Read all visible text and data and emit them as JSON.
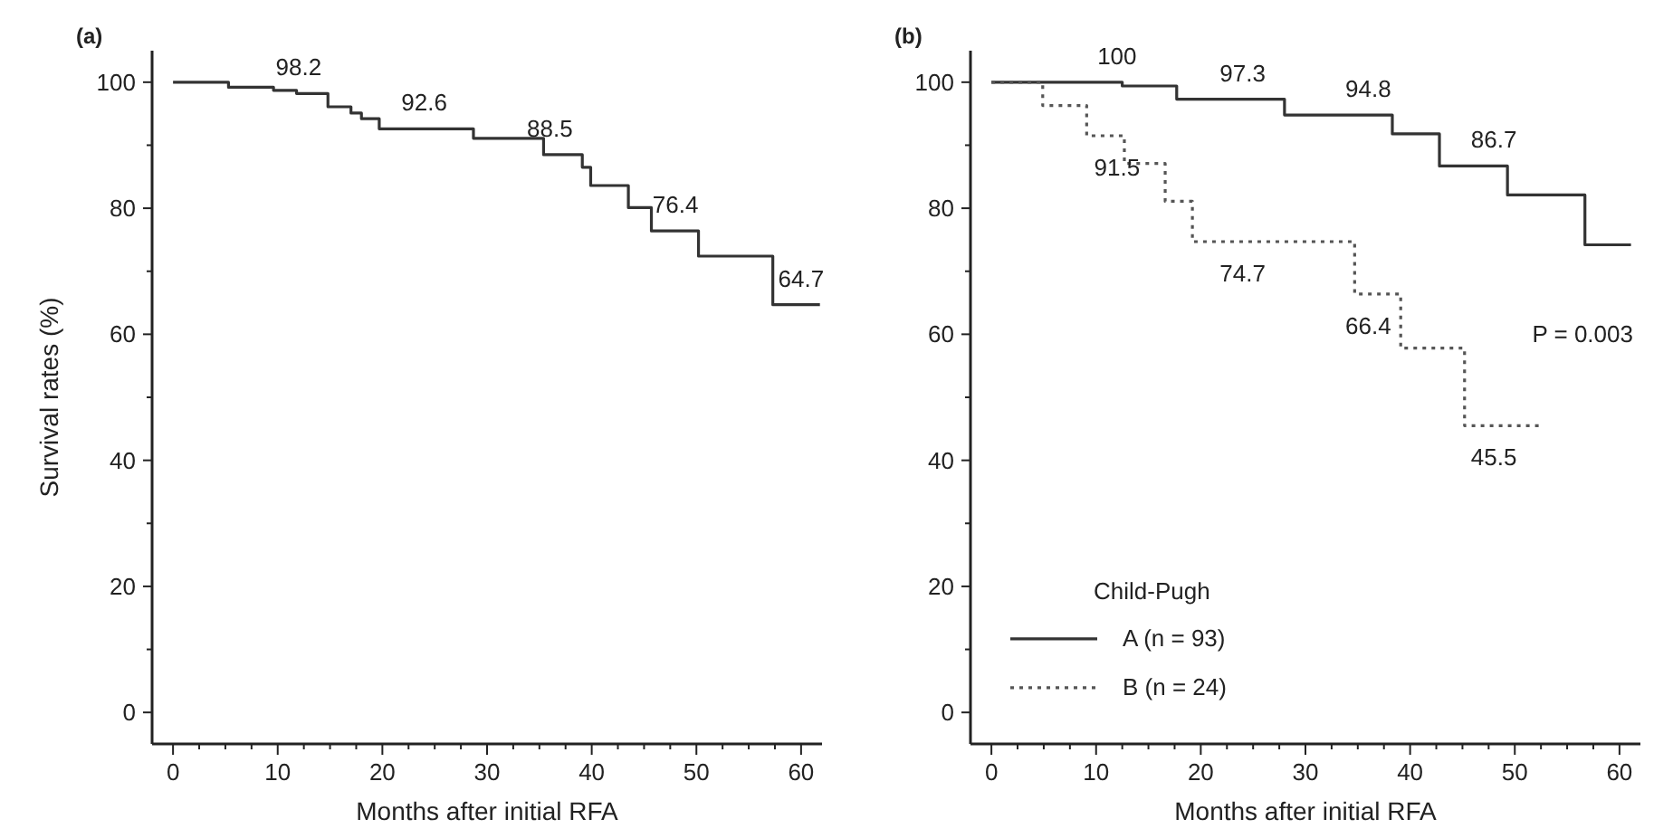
{
  "chart_data": [
    {
      "type": "step",
      "title": "(a)",
      "xlabel": "Months after initial RFA",
      "ylabel": "Survival rates (%)",
      "xlim": [
        -2,
        62
      ],
      "ylim": [
        -5,
        105
      ],
      "xticks": [
        0,
        {
          "value": 2.5,
          "label": null
        },
        {
          "value": 5,
          "label": null
        },
        {
          "value": 7.5,
          "label": null
        },
        10,
        {
          "value": 12.5,
          "label": null
        },
        {
          "value": 15,
          "label": null
        },
        {
          "value": 17.5,
          "label": null
        },
        20,
        {
          "value": 22.5,
          "label": null
        },
        {
          "value": 25,
          "label": null
        },
        {
          "value": 27.5,
          "label": null
        },
        30,
        {
          "value": 32.5,
          "label": null
        },
        {
          "value": 35,
          "label": null
        },
        {
          "value": 37.5,
          "label": null
        },
        40,
        {
          "value": 42.5,
          "label": null
        },
        {
          "value": 45,
          "label": null
        },
        {
          "value": 47.5,
          "label": null
        },
        50,
        {
          "value": 52.5,
          "label": null
        },
        {
          "value": 55,
          "label": null
        },
        {
          "value": 57.5,
          "label": null
        },
        60
      ],
      "yticks": [
        0,
        {
          "value": 10,
          "label": null
        },
        20,
        {
          "value": 30,
          "label": null
        },
        40,
        {
          "value": 50,
          "label": null
        },
        60,
        {
          "value": 70,
          "label": null
        },
        80,
        {
          "value": 90,
          "label": null
        },
        100
      ],
      "grid": false,
      "legend": false,
      "series": [
        {
          "color": "#333333",
          "line_style": "solid",
          "x": [
            0,
            5.3,
            9.6,
            11.8,
            14.8,
            17.0,
            18.0,
            19.7,
            28.7,
            35.4,
            39.1,
            39.9,
            43.5,
            45.7,
            50.2,
            57.3,
            61.8
          ],
          "values": [
            100,
            99.2,
            98.7,
            98.2,
            96.1,
            95.1,
            94.2,
            92.6,
            91.1,
            88.5,
            86.5,
            83.6,
            80.1,
            76.4,
            72.4,
            64.7,
            64.7
          ]
        }
      ],
      "annotations": [
        {
          "text": "98.2",
          "x": 12,
          "y": 98.2
        },
        {
          "text": "92.6",
          "x": 24,
          "y": 92.6
        },
        {
          "text": "88.5",
          "x": 36,
          "y": 88.5
        },
        {
          "text": "76.4",
          "x": 48,
          "y": 76.4
        },
        {
          "text": "64.7",
          "x": 60,
          "y": 64.7
        }
      ]
    },
    {
      "type": "step",
      "title": "(b)",
      "xlabel": "Months after initial RFA",
      "xlim": [
        -2,
        62
      ],
      "ylim": [
        -5,
        105
      ],
      "xticks": [
        0,
        {
          "value": 2.5,
          "label": null
        },
        {
          "value": 5,
          "label": null
        },
        {
          "value": 7.5,
          "label": null
        },
        10,
        {
          "value": 12.5,
          "label": null
        },
        {
          "value": 15,
          "label": null
        },
        {
          "value": 17.5,
          "label": null
        },
        20,
        {
          "value": 22.5,
          "label": null
        },
        {
          "value": 25,
          "label": null
        },
        {
          "value": 27.5,
          "label": null
        },
        30,
        {
          "value": 32.5,
          "label": null
        },
        {
          "value": 35,
          "label": null
        },
        {
          "value": 37.5,
          "label": null
        },
        40,
        {
          "value": 42.5,
          "label": null
        },
        {
          "value": 45,
          "label": null
        },
        {
          "value": 47.5,
          "label": null
        },
        50,
        {
          "value": 52.5,
          "label": null
        },
        {
          "value": 55,
          "label": null
        },
        {
          "value": 57.5,
          "label": null
        },
        60
      ],
      "yticks": [
        0,
        {
          "value": 10,
          "label": null
        },
        20,
        {
          "value": 30,
          "label": null
        },
        40,
        {
          "value": 50,
          "label": null
        },
        60,
        {
          "value": 70,
          "label": null
        },
        80,
        {
          "value": 90,
          "label": null
        },
        100
      ],
      "grid": false,
      "legend": "bottom left",
      "legend_title": "Child-Pugh",
      "series": [
        {
          "name": "A (n = 93)",
          "color": "#333333",
          "line_style": "solid",
          "x": [
            0,
            12.5,
            17.7,
            28.0,
            38.3,
            42.8,
            49.3,
            56.7,
            61.1
          ],
          "values": [
            100,
            99.4,
            97.3,
            94.8,
            91.8,
            86.7,
            82.1,
            74.2,
            74.2
          ]
        },
        {
          "name": "B (n = 24)",
          "color": "#555555",
          "line_style": "dotted",
          "x": [
            0,
            4.9,
            9.1,
            12.7,
            16.6,
            19.2,
            34.7,
            39.1,
            45.2,
            52.6
          ],
          "values": [
            100,
            96.3,
            91.5,
            87.1,
            81.1,
            74.7,
            66.4,
            57.8,
            45.5,
            45.5
          ]
        }
      ],
      "annotations": [
        {
          "text": "100",
          "x": 12,
          "y": 100
        },
        {
          "text": "97.3",
          "x": 24,
          "y": 97.3
        },
        {
          "text": "94.8",
          "x": 36,
          "y": 94.8
        },
        {
          "text": "86.7",
          "x": 48,
          "y": 86.7
        },
        {
          "text": "91.5",
          "x": 12,
          "y": 91.5
        },
        {
          "text": "74.7",
          "x": 24,
          "y": 74.7
        },
        {
          "text": "66.4",
          "x": 36,
          "y": 66.4
        },
        {
          "text": "45.5",
          "x": 48,
          "y": 45.5
        },
        "P = 0.003"
      ]
    }
  ]
}
